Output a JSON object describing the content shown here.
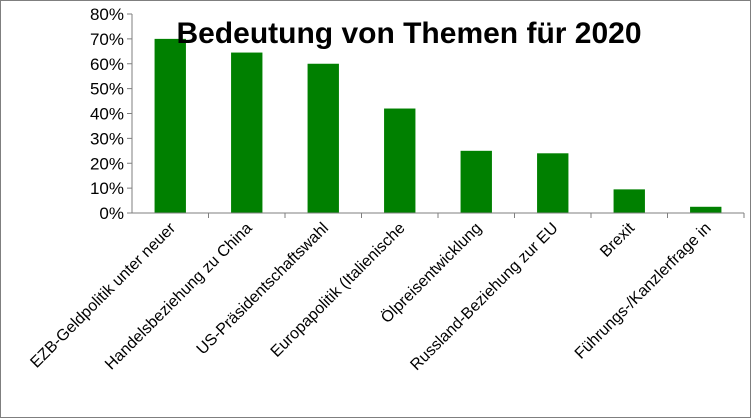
{
  "chart_data": {
    "type": "bar",
    "title": "Bedeutung von Themen für 2020",
    "xlabel": "",
    "ylabel": "",
    "categories": [
      "EZB-Geldpolitik unter neuer",
      "Handelsbeziehung zu China",
      "US-Präsidentschaftswahl",
      "Europapolitik (Italienische",
      "Ölpreisentwicklung",
      "Russland-Beziehung zur EU",
      "Brexit",
      "Führungs-/Kanzlerfrage in"
    ],
    "values": [
      70,
      64.5,
      60,
      42,
      25,
      24,
      9.5,
      2.5
    ],
    "y_ticks": [
      "0%",
      "10%",
      "20%",
      "30%",
      "40%",
      "50%",
      "60%",
      "70%",
      "80%"
    ],
    "ylim": [
      0,
      80
    ],
    "grid": false,
    "legend": "none",
    "bar_color": "#008000"
  }
}
